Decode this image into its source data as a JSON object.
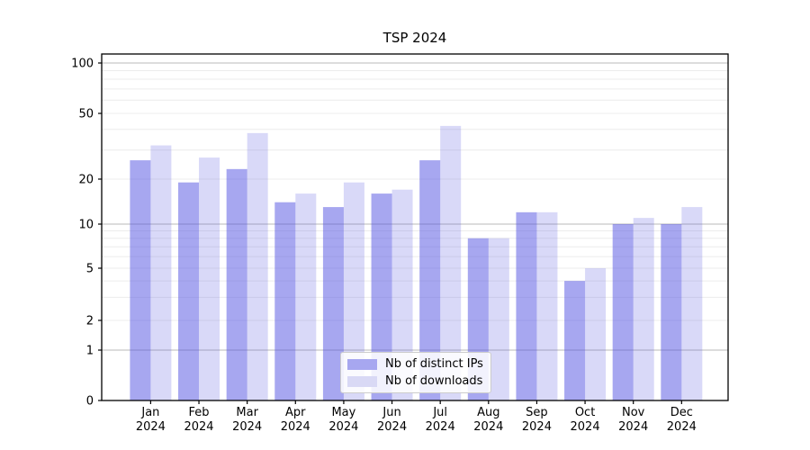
{
  "figure": {
    "background": "#ffffff"
  },
  "chart_data": {
    "type": "bar",
    "title": "TSP 2024",
    "categories": [
      "Jan",
      "Feb",
      "Mar",
      "Apr",
      "May",
      "Jun",
      "Jul",
      "Aug",
      "Sep",
      "Oct",
      "Nov",
      "Dec"
    ],
    "category_year": "2024",
    "series": [
      {
        "name": "Nb of distinct IPs",
        "values": [
          26,
          19,
          23,
          14,
          13,
          16,
          26,
          8,
          12,
          4,
          10,
          10
        ],
        "color": "rgba(80,80,225,0.5)",
        "swatch": "#a7a7f0"
      },
      {
        "name": "Nb of downloads",
        "values": [
          32,
          27,
          38,
          16,
          19,
          17,
          42,
          8,
          12,
          5,
          11,
          13
        ],
        "color": "rgba(80,80,225,0.22)",
        "swatch": "#d9d9f5"
      }
    ],
    "xlabel": "",
    "ylabel": "",
    "yscale": "log-like (compressed toward 0, ticks 0/1/2/5/10/20/50/100)",
    "yticks": [
      0,
      1,
      2,
      5,
      10,
      20,
      50,
      100
    ],
    "ylim": [
      0,
      115
    ],
    "grid": {
      "enabled": true,
      "major": [
        1,
        10,
        100
      ],
      "minor": [
        2,
        3,
        4,
        5,
        6,
        7,
        8,
        9,
        20,
        30,
        40,
        50,
        60,
        70,
        80,
        90
      ],
      "major_color": "#b9b9b9",
      "minor_color": "#ececec"
    },
    "legend": {
      "position": "lower center",
      "labels": [
        "Nb of distinct IPs",
        "Nb of downloads"
      ]
    },
    "axis_color": "#000000",
    "text_color": "#000000"
  }
}
